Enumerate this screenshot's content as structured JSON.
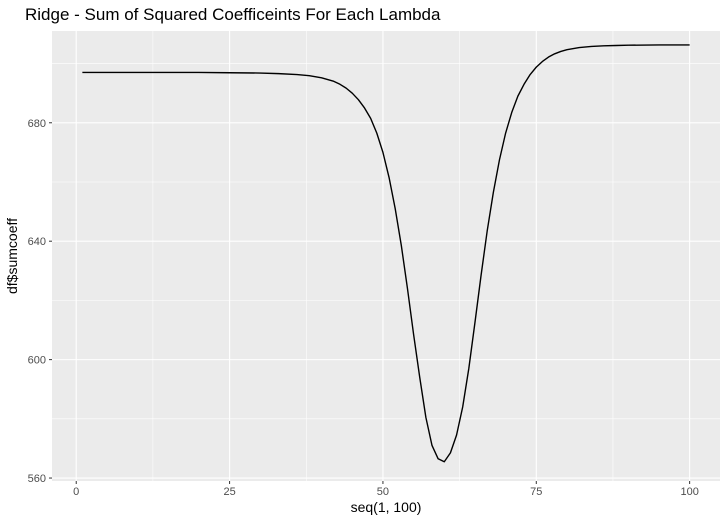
{
  "chart_data": {
    "type": "line",
    "title": "Ridge - Sum of Squared Coefficeints For Each Lambda",
    "xlabel": "seq(1, 100)",
    "ylabel": "df$sumcoeff",
    "xlim": [
      -3.95,
      104.95
    ],
    "ylim": [
      559.0,
      711.0
    ],
    "x_ticks": [
      0,
      25,
      50,
      75,
      100
    ],
    "x_tick_labels": [
      "0",
      "25",
      "50",
      "75",
      "100"
    ],
    "y_ticks": [
      560,
      600,
      640,
      680
    ],
    "y_tick_labels": [
      "560",
      "600",
      "640",
      "680"
    ],
    "grid": true,
    "legend": "none",
    "colors": {
      "panel": "#ebebeb",
      "grid": "#ffffff",
      "line": "#000000"
    },
    "series": [
      {
        "x": [
          1,
          5,
          10,
          15,
          20,
          25,
          30,
          33,
          36,
          38,
          40,
          42,
          43,
          44,
          45,
          46,
          47,
          48,
          49,
          50,
          51,
          52,
          53,
          54,
          55,
          56,
          57,
          58,
          59,
          60,
          61,
          62,
          63,
          64,
          65,
          66,
          67,
          68,
          69,
          70,
          71,
          72,
          73,
          74,
          75,
          76,
          77,
          78,
          79,
          80,
          82,
          84,
          86,
          88,
          90,
          95,
          100
        ],
        "y": [
          697,
          697,
          697,
          697,
          697,
          696.9,
          696.8,
          696.6,
          696.3,
          695.9,
          695.2,
          694,
          693,
          691.7,
          690,
          687.8,
          685,
          681.5,
          676.5,
          670,
          661.5,
          651,
          638.5,
          624,
          608.5,
          594,
          580.5,
          571,
          566.5,
          565.5,
          568.5,
          574.5,
          584,
          597,
          612.5,
          628.5,
          643.5,
          656.5,
          667.5,
          676.5,
          683.5,
          689,
          693,
          696.3,
          698.8,
          700.7,
          702.2,
          703.3,
          704.1,
          704.7,
          705.4,
          705.8,
          706,
          706.1,
          706.2,
          706.3,
          706.3
        ]
      }
    ]
  }
}
